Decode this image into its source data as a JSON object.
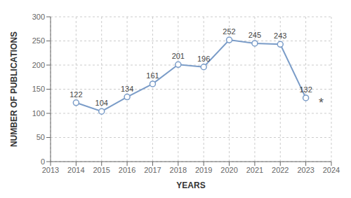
{
  "chart_data": {
    "type": "line",
    "x": [
      2014,
      2015,
      2016,
      2017,
      2018,
      2019,
      2020,
      2021,
      2022,
      2023
    ],
    "values": [
      122,
      104,
      134,
      161,
      201,
      196,
      252,
      245,
      243,
      132
    ],
    "xlabel": "YEARS",
    "ylabel": "NUMBER OF PUBLICATIONS",
    "xlim": [
      2013,
      2024
    ],
    "xticks": [
      2013,
      2014,
      2015,
      2016,
      2017,
      2018,
      2019,
      2020,
      2021,
      2022,
      2023,
      2024
    ],
    "ylim": [
      0,
      300
    ],
    "yticks": [
      0,
      50,
      100,
      150,
      200,
      250,
      300
    ],
    "color": "#7a9cc8",
    "marker": "circle",
    "grid": true,
    "data_labels": true,
    "annotations": [
      {
        "text": "*",
        "x": 2023.6,
        "y": 122
      }
    ]
  }
}
